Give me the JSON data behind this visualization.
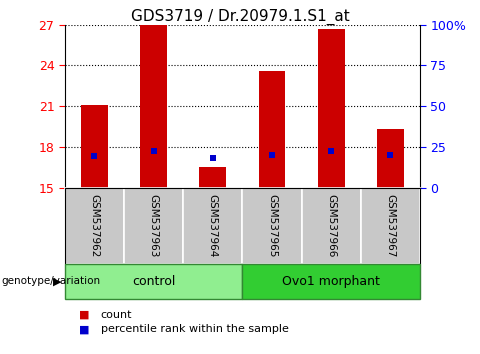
{
  "title": "GDS3719 / Dr.20979.1.S1_at",
  "samples": [
    "GSM537962",
    "GSM537963",
    "GSM537964",
    "GSM537965",
    "GSM537966",
    "GSM537967"
  ],
  "count_values": [
    21.1,
    27.0,
    16.5,
    23.6,
    26.7,
    19.3
  ],
  "percentile_values": [
    17.35,
    17.7,
    17.2,
    17.4,
    17.7,
    17.4
  ],
  "y_min": 15,
  "y_max": 27,
  "y_ticks": [
    15,
    18,
    21,
    24,
    27
  ],
  "y2_ticks": [
    0,
    25,
    50,
    75,
    100
  ],
  "groups": [
    {
      "label": "control",
      "indices": [
        0,
        1,
        2
      ],
      "color": "#90EE90"
    },
    {
      "label": "Ovo1 morphant",
      "indices": [
        3,
        4,
        5
      ],
      "color": "#32CD32"
    }
  ],
  "bar_color": "#CC0000",
  "dot_color": "#0000CC",
  "bar_width": 0.45,
  "bg_plot": "#FFFFFF",
  "bg_label": "#C8C8C8",
  "title_fontsize": 11,
  "tick_fontsize": 9,
  "label_fontsize": 8,
  "legend_fontsize": 8
}
